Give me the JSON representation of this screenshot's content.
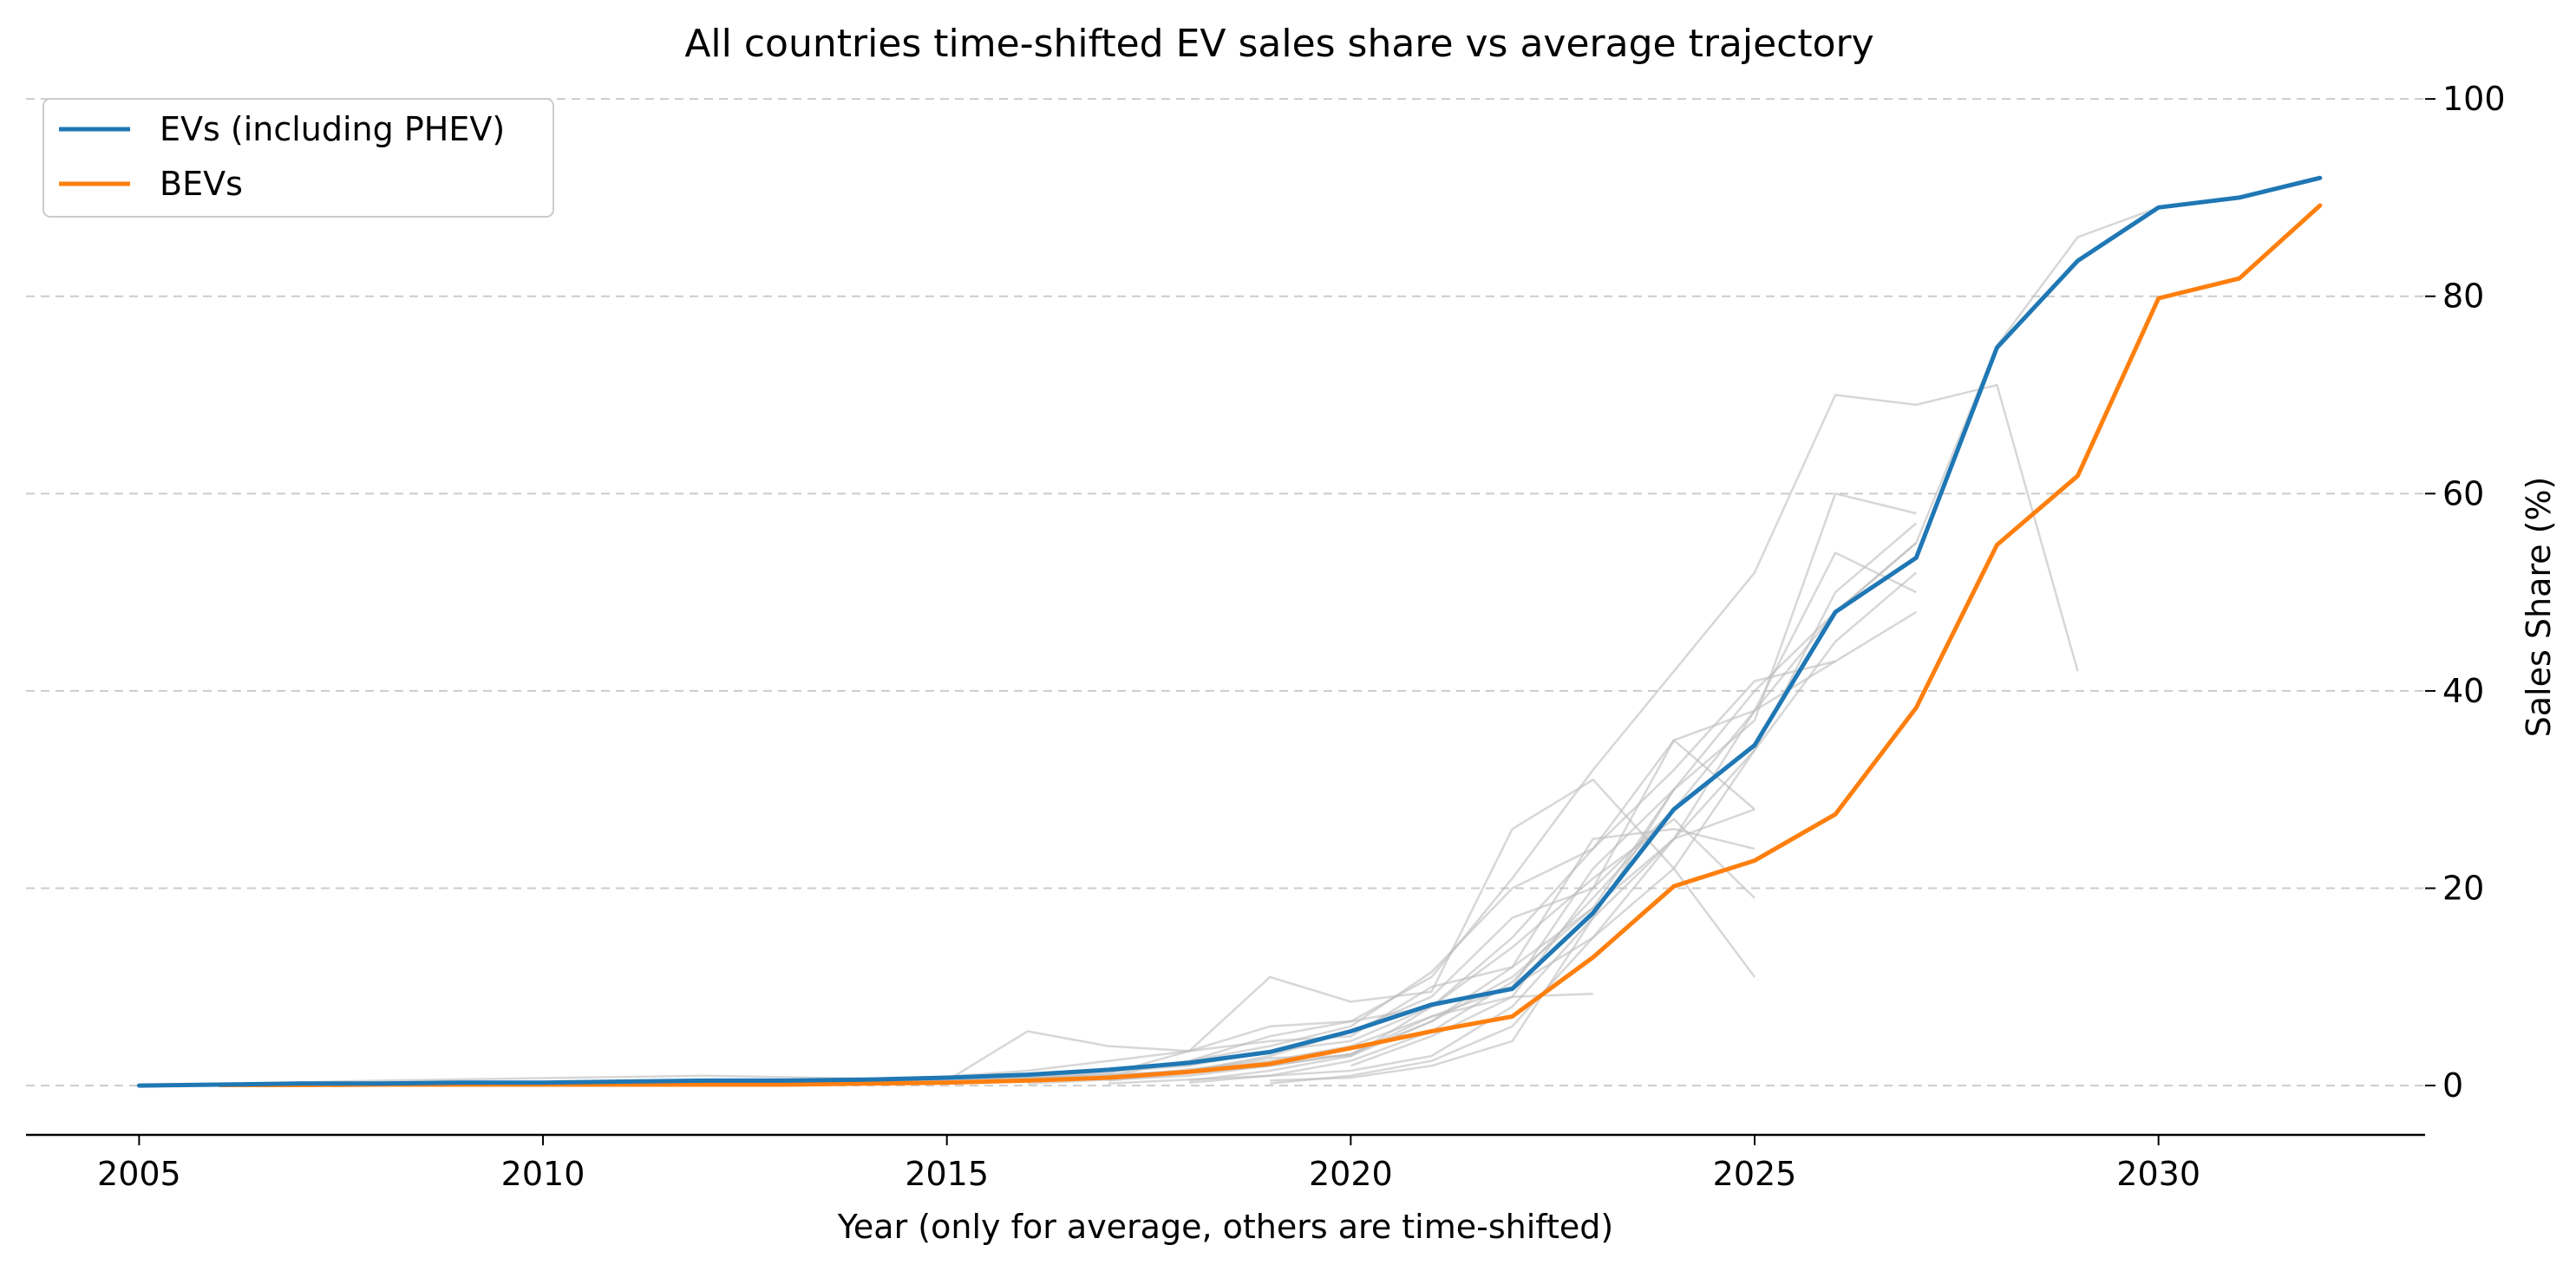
{
  "chart_data": {
    "type": "line",
    "title": "All countries time-shifted EV sales share vs average trajectory",
    "xlabel": "Year (only for average, others are time-shifted)",
    "ylabel": "Sales Share (%)",
    "xlim": [
      2003.6,
      2033.3
    ],
    "ylim": [
      -5,
      103
    ],
    "x_ticks": [
      2005,
      2010,
      2015,
      2020,
      2025,
      2030
    ],
    "y_ticks": [
      0,
      20,
      40,
      60,
      80,
      100
    ],
    "y_axis_side": "right",
    "grid": "horizontal dashed",
    "legend_position": "top-left",
    "colors": {
      "evs": "#1f77b4",
      "bevs": "#ff7f0e",
      "countries": "#bdbdbd"
    },
    "series": [
      {
        "name": "EVs (including PHEV)",
        "x": [
          2005,
          2006,
          2007,
          2008,
          2009,
          2010,
          2011,
          2012,
          2013,
          2014,
          2015,
          2016,
          2017,
          2018,
          2019,
          2020,
          2021,
          2022,
          2023,
          2024,
          2025,
          2026,
          2027,
          2028,
          2029,
          2030,
          2031,
          2032
        ],
        "y": [
          0,
          0.1,
          0.2,
          0.2,
          0.3,
          0.3,
          0.4,
          0.5,
          0.5,
          0.6,
          0.8,
          1.1,
          1.6,
          2.3,
          3.4,
          5.5,
          8.2,
          9.8,
          17.5,
          28,
          34.5,
          48,
          53.5,
          74.8,
          83.6,
          89,
          90,
          92
        ]
      },
      {
        "name": "BEVs",
        "x": [
          2006,
          2007,
          2008,
          2009,
          2010,
          2011,
          2012,
          2013,
          2014,
          2015,
          2016,
          2017,
          2018,
          2019,
          2020,
          2021,
          2022,
          2023,
          2024,
          2025,
          2026,
          2027,
          2028,
          2029,
          2030,
          2031,
          2032
        ],
        "y": [
          0.05,
          0.05,
          0.1,
          0.1,
          0.1,
          0.1,
          0.1,
          0.1,
          0.2,
          0.3,
          0.5,
          0.8,
          1.4,
          2.2,
          3.8,
          5.5,
          7,
          13,
          20.2,
          22.8,
          27.5,
          38.3,
          54.8,
          61.8,
          79.8,
          81.8,
          89.2
        ]
      }
    ],
    "background_series": [
      {
        "x": [
          2005,
          2008,
          2012,
          2014,
          2015,
          2016,
          2017,
          2018,
          2019,
          2020,
          2021,
          2022,
          2023,
          2024,
          2025,
          2026,
          2027
        ],
        "y": [
          0,
          0.5,
          1,
          0.7,
          0.9,
          1.5,
          2.5,
          3.5,
          6,
          6.5,
          8,
          10,
          15,
          22,
          34,
          45,
          52
        ]
      },
      {
        "x": [
          2006,
          2010,
          2015,
          2016,
          2017,
          2018,
          2019,
          2020,
          2021,
          2022,
          2023,
          2024,
          2025,
          2026
        ],
        "y": [
          0.1,
          0.3,
          0.5,
          5.5,
          4,
          3.5,
          4.5,
          5,
          10,
          12,
          18,
          25,
          38,
          43
        ]
      },
      {
        "x": [
          2010,
          2015,
          2017,
          2018,
          2019,
          2020,
          2021,
          2022,
          2023,
          2024,
          2025
        ],
        "y": [
          0.2,
          0.4,
          1.2,
          3.5,
          11,
          8.5,
          9.5,
          26,
          31,
          22,
          11
        ]
      },
      {
        "x": [
          2012,
          2015,
          2017,
          2018,
          2019,
          2020,
          2021,
          2022,
          2023,
          2024,
          2025,
          2026,
          2027,
          2028,
          2029
        ],
        "y": [
          0.3,
          0.6,
          1.5,
          2.5,
          5,
          6.5,
          11,
          21,
          32,
          42,
          52,
          70,
          69,
          71,
          42
        ]
      },
      {
        "x": [
          2013,
          2016,
          2018,
          2019,
          2020,
          2021,
          2022,
          2023,
          2024,
          2025,
          2026,
          2027
        ],
        "y": [
          0.2,
          0.8,
          2,
          3.5,
          4.5,
          8,
          15,
          24,
          35,
          38,
          54,
          50
        ]
      },
      {
        "x": [
          2014,
          2017,
          2018,
          2019,
          2020,
          2021,
          2022,
          2023,
          2024,
          2025,
          2026,
          2027
        ],
        "y": [
          0.3,
          1,
          2.5,
          4,
          6,
          11.5,
          20,
          24,
          32,
          41,
          43,
          48
        ]
      },
      {
        "x": [
          2015,
          2017,
          2019,
          2020,
          2021,
          2022,
          2023,
          2024,
          2025,
          2026,
          2027
        ],
        "y": [
          0.2,
          0.8,
          2.5,
          4,
          7,
          10,
          22,
          30,
          37,
          60,
          58
        ]
      },
      {
        "x": [
          2015,
          2018,
          2019,
          2020,
          2021,
          2022,
          2023,
          2024,
          2025
        ],
        "y": [
          0.3,
          1.5,
          3,
          5.5,
          9,
          17,
          20,
          35,
          28
        ]
      },
      {
        "x": [
          2016,
          2018,
          2019,
          2020,
          2021,
          2022,
          2023,
          2024,
          2025
        ],
        "y": [
          0.2,
          1,
          2,
          3.2,
          6.5,
          12,
          25,
          26,
          24
        ]
      },
      {
        "x": [
          2016,
          2018,
          2019,
          2020,
          2021,
          2022,
          2023,
          2024,
          2025
        ],
        "y": [
          0.4,
          1.5,
          2.8,
          3,
          8,
          14,
          21,
          27,
          19
        ]
      },
      {
        "x": [
          2017,
          2019,
          2020,
          2021,
          2022,
          2023
        ],
        "y": [
          0.5,
          2,
          3.2,
          7,
          9,
          9.3
        ]
      },
      {
        "x": [
          2017,
          2019,
          2020,
          2021,
          2022,
          2023,
          2024
        ],
        "y": [
          0.2,
          1,
          2.5,
          5.5,
          10.5,
          19,
          28
        ]
      },
      {
        "x": [
          2018,
          2019,
          2020,
          2021,
          2022,
          2023,
          2024,
          2025,
          2026,
          2027
        ],
        "y": [
          0.5,
          1.5,
          3,
          6.5,
          11,
          18,
          30,
          40,
          48,
          55
        ]
      },
      {
        "x": [
          2018,
          2019,
          2020,
          2021,
          2022,
          2023,
          2024
        ],
        "y": [
          0.3,
          1,
          1.5,
          3,
          8,
          17,
          30
        ]
      },
      {
        "x": [
          2019,
          2020,
          2021,
          2022,
          2023,
          2024,
          2025
        ],
        "y": [
          0.2,
          1,
          2.5,
          6,
          15,
          25,
          28
        ]
      },
      {
        "x": [
          2019,
          2020,
          2021,
          2022,
          2023,
          2024,
          2025,
          2026,
          2027
        ],
        "y": [
          0.5,
          0.8,
          2,
          4.5,
          17,
          25,
          34,
          50,
          57
        ]
      },
      {
        "x": [
          2020,
          2021,
          2022,
          2023,
          2024,
          2025,
          2026,
          2027,
          2028,
          2029,
          2030
        ],
        "y": [
          2,
          5,
          9,
          20,
          28,
          38,
          48,
          55,
          75,
          86,
          89
        ]
      }
    ]
  },
  "legend": [
    {
      "label": "EVs (including PHEV)",
      "color": "#1f77b4"
    },
    {
      "label": "BEVs",
      "color": "#ff7f0e"
    }
  ]
}
